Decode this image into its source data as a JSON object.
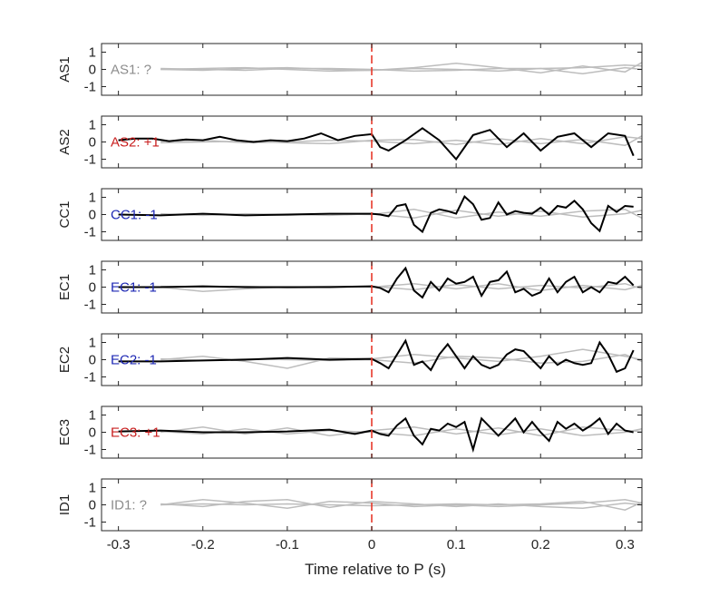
{
  "chart_data": {
    "type": "line",
    "xlabel": "Time relative to P (s)",
    "xlim": [
      -0.32,
      0.32
    ],
    "ylim": [
      -1.5,
      1.5
    ],
    "xticks": [
      -0.3,
      -0.2,
      -0.1,
      0,
      0.1,
      0.2,
      0.3
    ],
    "xtick_labels": [
      "-0.3",
      "-0.2",
      "-0.1",
      "0",
      "0.1",
      "0.2",
      "0.3"
    ],
    "yticks": [
      1,
      0,
      -1
    ],
    "ytick_labels": [
      "1",
      "0",
      "-1"
    ],
    "marker_x": 0,
    "colors": {
      "marker": "#e8392b",
      "trace": "#000000",
      "background_traces": "#bdbdbd",
      "positive": "#c81e1e",
      "negative": "#1e28b4",
      "unknown": "#8c8c8c"
    },
    "panels": [
      {
        "ylabel": "AS1",
        "annotation": "AS1: ?",
        "annotation_color": "#8c8c8c",
        "trace": [],
        "background": [
          {
            "x": [
              -0.25,
              -0.2,
              -0.15,
              -0.1,
              -0.05,
              0,
              0.05,
              0.1,
              0.15,
              0.2,
              0.25,
              0.3,
              0.32
            ],
            "y": [
              0.0,
              0.05,
              0.1,
              0.0,
              -0.1,
              -0.05,
              0.1,
              0.35,
              0.1,
              -0.2,
              0.2,
              -0.15,
              0.4
            ]
          },
          {
            "x": [
              -0.25,
              -0.2,
              -0.15,
              -0.1,
              -0.05,
              0,
              0.05,
              0.1,
              0.15,
              0.2,
              0.25,
              0.3,
              0.32
            ],
            "y": [
              0.05,
              0.0,
              -0.05,
              0.05,
              0.05,
              0.0,
              -0.1,
              -0.05,
              0.05,
              0.05,
              0.1,
              0.25,
              0.2
            ]
          },
          {
            "x": [
              -0.25,
              -0.2,
              -0.15,
              -0.1,
              -0.05,
              0,
              0.05,
              0.1,
              0.15,
              0.2,
              0.25,
              0.3,
              0.32
            ],
            "y": [
              0.0,
              -0.05,
              0.05,
              0.1,
              0.0,
              -0.05,
              0.05,
              0.0,
              -0.1,
              0.05,
              -0.25,
              0.1,
              0.0
            ]
          }
        ]
      },
      {
        "ylabel": "AS2",
        "annotation": "AS2: +1",
        "annotation_color": "#c81e1e",
        "trace": {
          "x": [
            -0.3,
            -0.28,
            -0.26,
            -0.24,
            -0.22,
            -0.2,
            -0.18,
            -0.16,
            -0.14,
            -0.12,
            -0.1,
            -0.08,
            -0.06,
            -0.04,
            -0.02,
            0,
            0.01,
            0.02,
            0.04,
            0.06,
            0.08,
            0.1,
            0.12,
            0.14,
            0.16,
            0.18,
            0.2,
            0.22,
            0.24,
            0.26,
            0.28,
            0.3,
            0.31
          ],
          "y": [
            0.1,
            0.2,
            0.2,
            0.05,
            0.15,
            0.1,
            0.3,
            0.1,
            0.0,
            0.1,
            0.05,
            0.2,
            0.5,
            0.1,
            0.35,
            0.45,
            -0.3,
            -0.5,
            0.1,
            0.8,
            0.1,
            -1.0,
            0.4,
            0.7,
            -0.3,
            0.5,
            -0.5,
            0.3,
            0.5,
            -0.3,
            0.5,
            0.35,
            -0.8
          ]
        },
        "background": [
          {
            "x": [
              -0.25,
              -0.2,
              -0.15,
              -0.1,
              -0.05,
              0,
              0.05,
              0.1,
              0.15,
              0.2,
              0.25,
              0.3,
              0.32
            ],
            "y": [
              0.05,
              0.1,
              -0.05,
              0.0,
              0.1,
              0.05,
              -0.1,
              0.1,
              -0.15,
              0.2,
              -0.1,
              0.3,
              0.2
            ]
          },
          {
            "x": [
              -0.25,
              -0.2,
              -0.15,
              -0.1,
              -0.05,
              0,
              0.05,
              0.1,
              0.15,
              0.2,
              0.25,
              0.3,
              0.32
            ],
            "y": [
              -0.05,
              0.0,
              0.05,
              -0.05,
              -0.1,
              0.1,
              0.15,
              -0.15,
              0.2,
              -0.1,
              0.15,
              -0.2,
              0.35
            ]
          }
        ]
      },
      {
        "ylabel": "CC1",
        "annotation": "CC1: -1",
        "annotation_color": "#1e28b4",
        "trace": {
          "x": [
            -0.3,
            -0.25,
            -0.2,
            -0.15,
            -0.1,
            -0.05,
            0,
            0.01,
            0.02,
            0.03,
            0.04,
            0.05,
            0.06,
            0.07,
            0.08,
            0.09,
            0.1,
            0.11,
            0.12,
            0.13,
            0.14,
            0.15,
            0.16,
            0.17,
            0.18,
            0.19,
            0.2,
            0.21,
            0.22,
            0.23,
            0.24,
            0.25,
            0.26,
            0.27,
            0.28,
            0.29,
            0.3,
            0.31
          ],
          "y": [
            0.0,
            -0.05,
            0.05,
            -0.05,
            0.0,
            0.05,
            0.05,
            0.0,
            -0.1,
            0.5,
            0.6,
            -0.6,
            -1.0,
            0.1,
            0.3,
            0.2,
            0.05,
            1.05,
            0.6,
            -0.3,
            -0.2,
            0.7,
            0.0,
            0.2,
            0.1,
            0.05,
            0.4,
            0.0,
            0.5,
            0.4,
            0.8,
            0.3,
            -0.5,
            -0.95,
            0.5,
            0.15,
            0.5,
            0.45
          ]
        },
        "background": [
          {
            "x": [
              -0.25,
              -0.2,
              -0.15,
              -0.1,
              -0.05,
              0,
              0.05,
              0.1,
              0.15,
              0.2,
              0.25,
              0.3,
              0.32
            ],
            "y": [
              0.0,
              0.05,
              0.0,
              -0.05,
              0.05,
              0.0,
              0.3,
              -0.2,
              0.15,
              -0.1,
              0.2,
              0.3,
              -0.2
            ]
          },
          {
            "x": [
              -0.25,
              -0.2,
              -0.15,
              -0.1,
              -0.05,
              0,
              0.05,
              0.1,
              0.15,
              0.2,
              0.25,
              0.3,
              0.32
            ],
            "y": [
              0.05,
              -0.05,
              0.05,
              0.0,
              -0.05,
              0.05,
              -0.2,
              0.25,
              -0.1,
              0.2,
              -0.15,
              0.05,
              0.25
            ]
          }
        ]
      },
      {
        "ylabel": "EC1",
        "annotation": "EC1: -1",
        "annotation_color": "#1e28b4",
        "trace": {
          "x": [
            -0.3,
            -0.25,
            -0.2,
            -0.15,
            -0.1,
            -0.05,
            0,
            0.01,
            0.02,
            0.03,
            0.04,
            0.05,
            0.06,
            0.07,
            0.08,
            0.09,
            0.1,
            0.11,
            0.12,
            0.13,
            0.14,
            0.15,
            0.16,
            0.17,
            0.18,
            0.19,
            0.2,
            0.21,
            0.22,
            0.23,
            0.24,
            0.25,
            0.26,
            0.27,
            0.28,
            0.29,
            0.3,
            0.31
          ],
          "y": [
            0.0,
            0.0,
            0.05,
            0.0,
            0.0,
            0.0,
            0.05,
            -0.05,
            -0.3,
            0.5,
            1.1,
            -0.2,
            -0.6,
            0.3,
            -0.2,
            0.5,
            0.2,
            0.3,
            0.6,
            -0.5,
            0.3,
            0.4,
            0.9,
            -0.3,
            -0.1,
            -0.5,
            -0.3,
            0.5,
            -0.3,
            0.3,
            0.6,
            -0.3,
            0.0,
            -0.3,
            0.3,
            0.2,
            0.6,
            0.1
          ]
        },
        "background": [
          {
            "x": [
              -0.25,
              -0.2,
              -0.15,
              -0.1,
              -0.05,
              0,
              0.05,
              0.1,
              0.15,
              0.2,
              0.25,
              0.3,
              0.32
            ],
            "y": [
              0.0,
              -0.25,
              -0.1,
              0.0,
              0.05,
              0.0,
              0.2,
              -0.1,
              0.2,
              -0.2,
              0.1,
              -0.15,
              0.1
            ]
          },
          {
            "x": [
              -0.25,
              -0.2,
              -0.15,
              -0.1,
              -0.05,
              0,
              0.05,
              0.1,
              0.15,
              0.2,
              0.25,
              0.3,
              0.32
            ],
            "y": [
              0.05,
              0.0,
              0.05,
              -0.05,
              0.0,
              0.05,
              -0.15,
              0.15,
              -0.1,
              0.1,
              -0.05,
              0.2,
              -0.1
            ]
          }
        ]
      },
      {
        "ylabel": "EC2",
        "annotation": "EC2: -1",
        "annotation_color": "#1e28b4",
        "trace": {
          "x": [
            -0.3,
            -0.25,
            -0.2,
            -0.15,
            -0.1,
            -0.05,
            0,
            0.01,
            0.02,
            0.03,
            0.04,
            0.05,
            0.06,
            0.07,
            0.08,
            0.09,
            0.1,
            0.11,
            0.12,
            0.13,
            0.14,
            0.15,
            0.16,
            0.17,
            0.18,
            0.19,
            0.2,
            0.21,
            0.22,
            0.23,
            0.24,
            0.25,
            0.26,
            0.27,
            0.28,
            0.29,
            0.3,
            0.31
          ],
          "y": [
            -0.1,
            -0.1,
            -0.05,
            0.0,
            0.1,
            0.0,
            0.05,
            -0.2,
            -0.5,
            0.3,
            1.1,
            -0.3,
            -0.1,
            -0.6,
            0.3,
            0.9,
            0.2,
            -0.5,
            0.2,
            -0.3,
            -0.5,
            -0.3,
            0.3,
            0.6,
            0.5,
            0.0,
            -0.5,
            0.2,
            -0.3,
            0.0,
            -0.2,
            -0.3,
            -0.2,
            1.0,
            0.3,
            -0.7,
            -0.5,
            0.55
          ]
        },
        "background": [
          {
            "x": [
              -0.25,
              -0.2,
              -0.15,
              -0.1,
              -0.05,
              0,
              0.05,
              0.1,
              0.15,
              0.2,
              0.25,
              0.3,
              0.32
            ],
            "y": [
              0.0,
              0.2,
              -0.1,
              -0.5,
              0.1,
              0.05,
              0.3,
              0.1,
              -0.1,
              0.2,
              0.6,
              0.2,
              0.0
            ]
          },
          {
            "x": [
              -0.25,
              -0.2,
              -0.15,
              -0.1,
              -0.05,
              0,
              0.05,
              0.1,
              0.15,
              0.2,
              0.25,
              0.3,
              0.32
            ],
            "y": [
              0.05,
              -0.05,
              0.05,
              0.0,
              -0.05,
              0.0,
              -0.2,
              0.2,
              0.1,
              -0.2,
              -0.1,
              0.3,
              -0.1
            ]
          }
        ]
      },
      {
        "ylabel": "EC3",
        "annotation": "EC3: +1",
        "annotation_color": "#c81e1e",
        "trace": {
          "x": [
            -0.3,
            -0.25,
            -0.2,
            -0.15,
            -0.1,
            -0.05,
            -0.02,
            0,
            0.01,
            0.02,
            0.03,
            0.04,
            0.05,
            0.06,
            0.07,
            0.08,
            0.09,
            0.1,
            0.11,
            0.12,
            0.13,
            0.14,
            0.15,
            0.16,
            0.17,
            0.18,
            0.19,
            0.2,
            0.21,
            0.22,
            0.23,
            0.24,
            0.25,
            0.26,
            0.27,
            0.28,
            0.29,
            0.3,
            0.31
          ],
          "y": [
            0.05,
            0.1,
            0.0,
            0.0,
            0.05,
            0.15,
            -0.1,
            0.1,
            -0.1,
            -0.2,
            0.4,
            0.8,
            -0.2,
            -0.7,
            0.2,
            0.1,
            0.5,
            0.3,
            0.6,
            -1.0,
            0.8,
            0.3,
            -0.2,
            0.3,
            0.8,
            0.0,
            0.6,
            0.0,
            -0.5,
            0.6,
            0.2,
            0.5,
            0.1,
            0.4,
            0.8,
            -0.1,
            0.5,
            0.1,
            0.0
          ]
        },
        "background": [
          {
            "x": [
              -0.25,
              -0.2,
              -0.15,
              -0.1,
              -0.05,
              0,
              0.05,
              0.1,
              0.15,
              0.2,
              0.25,
              0.3,
              0.32
            ],
            "y": [
              0.0,
              0.3,
              -0.1,
              0.25,
              -0.2,
              0.1,
              0.3,
              -0.1,
              0.25,
              -0.2,
              0.3,
              0.1,
              0.05
            ]
          },
          {
            "x": [
              -0.25,
              -0.2,
              -0.15,
              -0.1,
              -0.05,
              0,
              0.05,
              0.1,
              0.15,
              0.2,
              0.25,
              0.3,
              0.32
            ],
            "y": [
              0.05,
              -0.1,
              0.2,
              -0.1,
              0.1,
              0.0,
              -0.2,
              0.2,
              -0.15,
              0.2,
              -0.2,
              0.0,
              0.2
            ]
          }
        ]
      },
      {
        "ylabel": "ID1",
        "annotation": "ID1: ?",
        "annotation_color": "#8c8c8c",
        "trace": [],
        "background": [
          {
            "x": [
              -0.25,
              -0.2,
              -0.15,
              -0.1,
              -0.05,
              0,
              0.05,
              0.1,
              0.15,
              0.2,
              0.25,
              0.3,
              0.32
            ],
            "y": [
              0.0,
              0.3,
              0.1,
              -0.2,
              0.2,
              0.1,
              -0.1,
              0.0,
              -0.1,
              0.0,
              0.1,
              0.3,
              0.1
            ]
          },
          {
            "x": [
              -0.25,
              -0.2,
              -0.15,
              -0.1,
              -0.05,
              0,
              0.05,
              0.1,
              0.15,
              0.2,
              0.25,
              0.3,
              0.32
            ],
            "y": [
              0.05,
              -0.1,
              0.2,
              0.3,
              -0.15,
              0.2,
              0.05,
              -0.1,
              0.05,
              -0.1,
              -0.2,
              0.1,
              0.0
            ]
          },
          {
            "x": [
              -0.25,
              -0.2,
              -0.15,
              -0.1,
              -0.05,
              0,
              0.05,
              0.1,
              0.15,
              0.2,
              0.25,
              0.3,
              0.32
            ],
            "y": [
              0.0,
              0.05,
              0.0,
              0.05,
              0.0,
              -0.05,
              0.0,
              0.05,
              0.0,
              0.05,
              0.2,
              -0.3,
              0.15
            ]
          }
        ]
      }
    ]
  }
}
